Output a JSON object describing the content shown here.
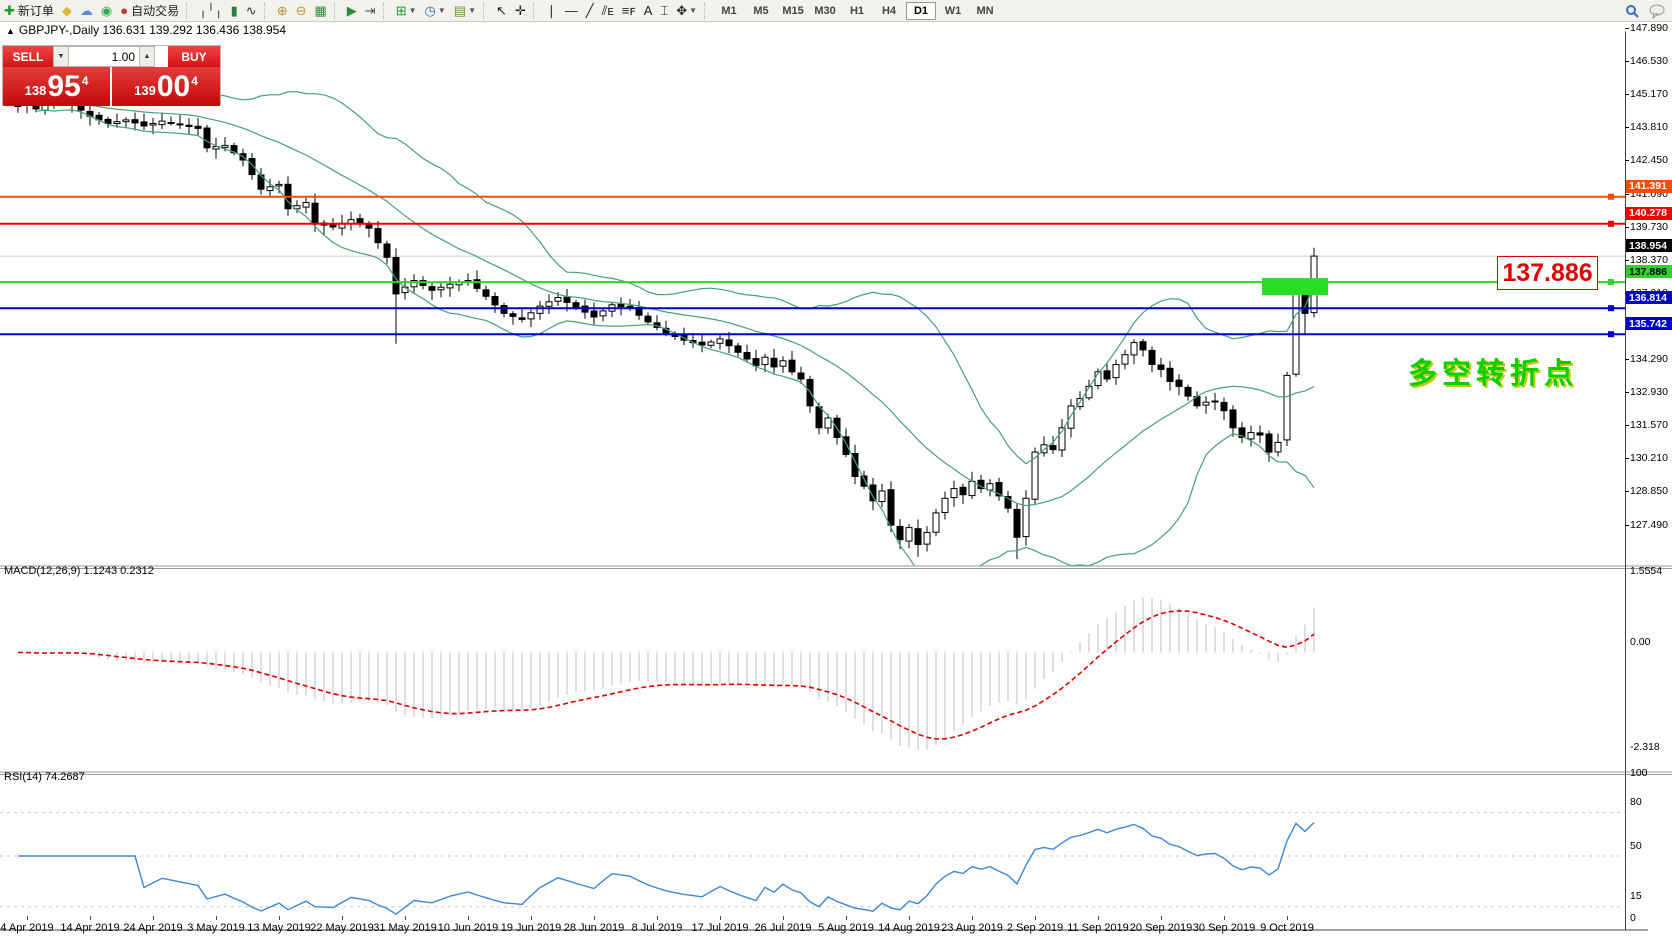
{
  "toolbar": {
    "groups": [
      [
        {
          "name": "new-order-icon",
          "glyph": "✚",
          "color": "#1a9c2e",
          "label": "新订单"
        },
        {
          "name": "profile-icon",
          "glyph": "◆",
          "color": "#d9b83c"
        },
        {
          "name": "charts-cloud-icon",
          "glyph": "☁",
          "color": "#5b8fd4"
        },
        {
          "name": "signals-icon",
          "glyph": "◉",
          "color": "#2fa84f"
        },
        {
          "name": "auto-trading-icon",
          "glyph": "●",
          "color": "#c03a2b",
          "label": "自动交易"
        }
      ],
      [
        {
          "name": "bar-chart-icon",
          "glyph": "╷╵╷",
          "color": "#333"
        },
        {
          "name": "candlestick-chart-icon",
          "glyph": "▮",
          "color": "#2d7d46"
        },
        {
          "name": "line-chart-icon",
          "glyph": "∿",
          "color": "#333"
        }
      ],
      [
        {
          "name": "zoom-in-icon",
          "glyph": "⊕",
          "color": "#b8952c"
        },
        {
          "name": "zoom-out-icon",
          "glyph": "⊖",
          "color": "#b8952c"
        },
        {
          "name": "tile-windows-icon",
          "glyph": "▦",
          "color": "#2d8d3a"
        }
      ],
      [
        {
          "name": "auto-scroll-icon",
          "glyph": "▶",
          "color": "#2d8d3a"
        },
        {
          "name": "chart-shift-icon",
          "glyph": "⇥",
          "color": "#555"
        }
      ],
      [
        {
          "name": "indicators-icon",
          "glyph": "⊞",
          "color": "#1a9c2e",
          "dropdown": true
        },
        {
          "name": "periods-icon",
          "glyph": "◷",
          "color": "#3a6fb0",
          "dropdown": true
        },
        {
          "name": "templates-icon",
          "glyph": "▤",
          "color": "#6a8f3c",
          "dropdown": true
        }
      ],
      [
        {
          "name": "cursor-icon",
          "glyph": "↖",
          "color": "#222"
        },
        {
          "name": "crosshair-icon",
          "glyph": "✛",
          "color": "#222"
        }
      ],
      [
        {
          "name": "vertical-line-icon",
          "glyph": "❘",
          "color": "#222"
        },
        {
          "name": "horizontal-line-icon",
          "glyph": "―",
          "color": "#222"
        },
        {
          "name": "trendline-icon",
          "glyph": "╱",
          "color": "#222"
        },
        {
          "name": "equidistant-channel-icon",
          "glyph": "⫽ᴇ",
          "color": "#222"
        },
        {
          "name": "fibonacci-icon",
          "glyph": "≡ꜰ",
          "color": "#222"
        },
        {
          "name": "text-icon",
          "glyph": "A",
          "color": "#222"
        },
        {
          "name": "text-label-icon",
          "glyph": "⌶",
          "color": "#222"
        },
        {
          "name": "arrows-icon",
          "glyph": "✥",
          "color": "#222",
          "dropdown": true
        }
      ]
    ],
    "timeframes": [
      "M1",
      "M5",
      "M15",
      "M30",
      "H1",
      "H4",
      "D1",
      "W1",
      "MN"
    ],
    "active_timeframe": "D1"
  },
  "window": {
    "collapse_arrow": "▲",
    "symbol_title": "GBPJPY-,Daily  136.631 139.292 136.436 138.954"
  },
  "trade_panel": {
    "sell_label": "SELL",
    "buy_label": "BUY",
    "volume": "1.00",
    "spin_up": "▲",
    "spin_down": "▼",
    "sell_price": {
      "small": "138",
      "big": "95",
      "sup": "4"
    },
    "buy_price": {
      "small": "139",
      "big": "00",
      "sup": "4"
    }
  },
  "price_axis": {
    "tick_start": 126.13,
    "tick_step": 1.36,
    "tick_count": 17,
    "current_price_badge": {
      "label": "138.954",
      "bg": "#000000",
      "fg": "#ffffff"
    }
  },
  "hlines": [
    {
      "name": "resistance-line-1",
      "price": 141.391,
      "label": "141.391",
      "color": "#ff4a00",
      "text": "#ffffff"
    },
    {
      "name": "resistance-line-2",
      "price": 140.278,
      "label": "140.278",
      "color": "#ee0000",
      "text": "#ffffff"
    },
    {
      "name": "pivot-line",
      "price": 137.886,
      "label": "137.886",
      "color": "#2ed32e",
      "text": "#000000"
    },
    {
      "name": "support-line-1",
      "price": 136.814,
      "label": "136.814",
      "color": "#0000cc",
      "text": "#ffffff"
    },
    {
      "name": "support-line-2",
      "price": 135.742,
      "label": "135.742",
      "color": "#0000cc",
      "text": "#ffffff"
    }
  ],
  "zone": {
    "price_top": 138.05,
    "price_bottom": 137.35,
    "color": "#27df27"
  },
  "big_price_label": "137.886",
  "annotation": "多空转折点",
  "macd_pane": {
    "label": "MACD(12,26,9) 1.1243 0.2312",
    "scale": [
      {
        "v": 1.5554,
        "label": "1.5554"
      },
      {
        "v": 0,
        "label": "0.00"
      },
      {
        "v": -2.318,
        "label": "-2.318"
      }
    ]
  },
  "rsi_pane": {
    "label": "RSI(14) 74.2687",
    "scale": [
      {
        "v": 100,
        "label": "100"
      },
      {
        "v": 80,
        "label": "80"
      },
      {
        "v": 50,
        "label": "50"
      },
      {
        "v": 15,
        "label": "15"
      },
      {
        "v": 0,
        "label": "0"
      }
    ],
    "level_lines": [
      80,
      50,
      15
    ]
  },
  "date_axis": [
    "4 Apr 2019",
    "14 Apr 2019",
    "24 Apr 2019",
    "3 May 2019",
    "13 May 2019",
    "22 May 2019",
    "31 May 2019",
    "10 Jun 2019",
    "19 Jun 2019",
    "28 Jun 2019",
    "8 Jul 2019",
    "17 Jul 2019",
    "26 Jul 2019",
    "5 Aug 2019",
    "14 Aug 2019",
    "23 Aug 2019",
    "2 Sep 2019",
    "11 Sep 2019",
    "20 Sep 2019",
    "30 Sep 2019",
    "9 Oct 2019"
  ],
  "chart_data": {
    "type": "candlestick",
    "symbol": "GBPJPY-",
    "period": "Daily",
    "bars": 145,
    "last_bar": {
      "open": 136.631,
      "high": 139.292,
      "low": 136.436,
      "close": 138.954
    },
    "close_anchors": [
      [
        0,
        145.3
      ],
      [
        2,
        145.0
      ],
      [
        4,
        145.5
      ],
      [
        6,
        145.2
      ],
      [
        8,
        144.7
      ],
      [
        10,
        144.4
      ],
      [
        12,
        144.55
      ],
      [
        14,
        144.3
      ],
      [
        16,
        144.5
      ],
      [
        18,
        144.35
      ],
      [
        20,
        144.2
      ],
      [
        21,
        143.4
      ],
      [
        23,
        143.5
      ],
      [
        25,
        142.9
      ],
      [
        27,
        141.7
      ],
      [
        29,
        141.9
      ],
      [
        30,
        140.9
      ],
      [
        32,
        141.15
      ],
      [
        33,
        140.3
      ],
      [
        35,
        140.15
      ],
      [
        37,
        140.45
      ],
      [
        39,
        140.1
      ],
      [
        41,
        138.9
      ],
      [
        42,
        137.4
      ],
      [
        44,
        137.95
      ],
      [
        46,
        137.55
      ],
      [
        48,
        137.8
      ],
      [
        50,
        137.95
      ],
      [
        52,
        137.3
      ],
      [
        54,
        136.6
      ],
      [
        56,
        136.35
      ],
      [
        58,
        136.9
      ],
      [
        60,
        137.25
      ],
      [
        62,
        136.85
      ],
      [
        64,
        136.45
      ],
      [
        66,
        136.95
      ],
      [
        68,
        136.8
      ],
      [
        70,
        136.25
      ],
      [
        72,
        135.8
      ],
      [
        74,
        135.5
      ],
      [
        76,
        135.3
      ],
      [
        78,
        135.55
      ],
      [
        80,
        135.0
      ],
      [
        82,
        134.45
      ],
      [
        83,
        134.8
      ],
      [
        84,
        134.4
      ],
      [
        85,
        134.65
      ],
      [
        86,
        134.2
      ],
      [
        87,
        133.9
      ],
      [
        88,
        132.8
      ],
      [
        89,
        131.9
      ],
      [
        90,
        132.3
      ],
      [
        91,
        131.5
      ],
      [
        92,
        130.8
      ],
      [
        93,
        129.9
      ],
      [
        94,
        129.5
      ],
      [
        95,
        128.9
      ],
      [
        96,
        129.3
      ],
      [
        97,
        127.9
      ],
      [
        98,
        127.3
      ],
      [
        99,
        127.8
      ],
      [
        100,
        127.1
      ],
      [
        101,
        127.6
      ],
      [
        102,
        128.4
      ],
      [
        103,
        129.0
      ],
      [
        104,
        129.4
      ],
      [
        105,
        129.15
      ],
      [
        106,
        129.7
      ],
      [
        107,
        129.4
      ],
      [
        108,
        129.6
      ],
      [
        109,
        129.1
      ],
      [
        110,
        128.6
      ],
      [
        111,
        127.4
      ],
      [
        112,
        129.0
      ],
      [
        113,
        130.9
      ],
      [
        114,
        131.2
      ],
      [
        115,
        131.0
      ],
      [
        116,
        131.9
      ],
      [
        117,
        132.8
      ],
      [
        118,
        133.1
      ],
      [
        119,
        133.6
      ],
      [
        120,
        134.2
      ],
      [
        121,
        133.9
      ],
      [
        122,
        134.5
      ],
      [
        123,
        134.9
      ],
      [
        124,
        135.4
      ],
      [
        125,
        135.1
      ],
      [
        126,
        134.5
      ],
      [
        127,
        134.3
      ],
      [
        128,
        133.8
      ],
      [
        129,
        133.6
      ],
      [
        130,
        133.2
      ],
      [
        131,
        132.8
      ],
      [
        132,
        132.95
      ],
      [
        133,
        133.0
      ],
      [
        134,
        132.6
      ],
      [
        135,
        131.9
      ],
      [
        136,
        131.5
      ],
      [
        137,
        131.7
      ],
      [
        138,
        131.6
      ],
      [
        139,
        130.9
      ],
      [
        140,
        131.3
      ],
      [
        141,
        134.05
      ],
      [
        142,
        137.45
      ],
      [
        143,
        136.6
      ],
      [
        144,
        138.954
      ]
    ],
    "low_overrides": {
      "42": 135.35,
      "100": 126.6,
      "111": 126.5,
      "139": 130.5,
      "143": 135.7
    },
    "bar_overrides": {
      "141": {
        "o": 131.4,
        "h": 134.2,
        "l": 131.15,
        "c": 134.05
      },
      "142": {
        "o": 134.1,
        "h": 137.6,
        "l": 134.0,
        "c": 137.45
      },
      "144": {
        "o": 136.631,
        "h": 139.292,
        "l": 136.436,
        "c": 138.954
      }
    },
    "indicators": {
      "bollinger": "Bands(20,2)",
      "macd": "MACD(12,26,9)",
      "rsi": "RSI(14)"
    },
    "colors": {
      "bull": "#ffffff",
      "bear": "#000000",
      "outline": "#000000",
      "bands": "#46a271",
      "macd_hist": "#bdbdbd",
      "macd_signal": "#dd0000",
      "rsi_line": "#3d86d8",
      "current_price_line": "#cfcfcf"
    }
  }
}
